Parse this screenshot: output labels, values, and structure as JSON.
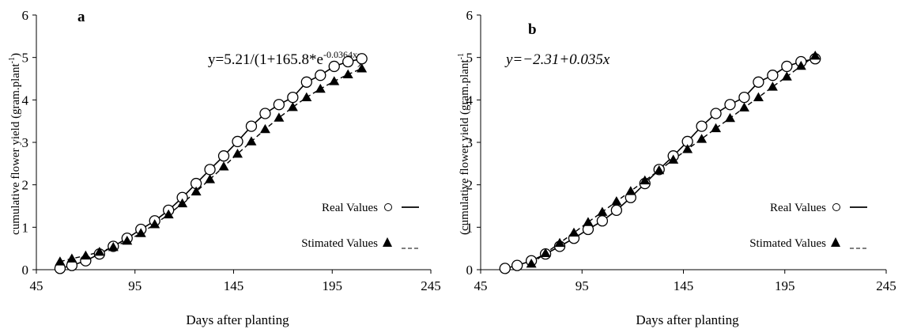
{
  "chart_data": [
    {
      "type": "scatter",
      "panel_label": "a",
      "equation": "y=5.21/(1+165.8*e",
      "equation_exponent": "-0.0364x",
      "equation_close": ")",
      "xlabel": "Days after planting",
      "ylabel": "cumulative flower yield (gram.plant",
      "ylabel_superscript": "-1",
      "ylabel_close": ")",
      "xlim": [
        45,
        245
      ],
      "ylim": [
        0,
        6
      ],
      "xticks": [
        "45",
        "95",
        "145",
        "195",
        "245"
      ],
      "yticks": [
        "0",
        "1",
        "2",
        "3",
        "4",
        "5",
        "6"
      ],
      "grid": false,
      "legend": [
        {
          "label": "Real Values",
          "marker": "open-circle",
          "line": "solid"
        },
        {
          "label": "Stimated Values",
          "marker": "filled-triangle",
          "line": "dashed"
        }
      ],
      "series": [
        {
          "name": "Real Values",
          "x": [
            57,
            63,
            70,
            77,
            84,
            91,
            98,
            105,
            112,
            119,
            126,
            133,
            140,
            147,
            154,
            161,
            168,
            175,
            182,
            189,
            196,
            203,
            210
          ],
          "y": [
            0.03,
            0.1,
            0.21,
            0.37,
            0.55,
            0.74,
            0.95,
            1.15,
            1.4,
            1.7,
            2.03,
            2.36,
            2.68,
            3.02,
            3.38,
            3.68,
            3.89,
            4.06,
            4.42,
            4.58,
            4.79,
            4.9,
            4.97
          ]
        },
        {
          "name": "Stimated Values",
          "x": [
            57,
            63,
            70,
            77,
            84,
            91,
            98,
            105,
            112,
            119,
            126,
            133,
            140,
            147,
            154,
            161,
            168,
            175,
            182,
            189,
            196,
            203,
            210
          ],
          "y": [
            0.19,
            0.26,
            0.33,
            0.42,
            0.53,
            0.68,
            0.86,
            1.07,
            1.3,
            1.56,
            1.84,
            2.13,
            2.43,
            2.73,
            3.02,
            3.31,
            3.58,
            3.83,
            4.06,
            4.26,
            4.44,
            4.6,
            4.74
          ]
        }
      ]
    },
    {
      "type": "scatter",
      "panel_label": "b",
      "equation": "y=−2.31+0.035x",
      "xlabel": "Days after planting",
      "ylabel": "(cumulative flower yield (gram.plant",
      "ylabel_superscript": "-1",
      "xlim": [
        45,
        245
      ],
      "ylim": [
        0,
        6
      ],
      "xticks": [
        "45",
        "95",
        "145",
        "195",
        "245"
      ],
      "yticks": [
        "0",
        "1",
        "2",
        "3",
        "4",
        "5",
        "6"
      ],
      "grid": false,
      "legend": [
        {
          "label": "Real Values",
          "marker": "open-circle",
          "line": "solid"
        },
        {
          "label": "Stimated Values",
          "marker": "filled-triangle",
          "line": "dashed"
        }
      ],
      "series": [
        {
          "name": "Real Values",
          "x": [
            57,
            63,
            70,
            77,
            84,
            91,
            98,
            105,
            112,
            119,
            126,
            133,
            140,
            147,
            154,
            161,
            168,
            175,
            182,
            189,
            196,
            203,
            210
          ],
          "y": [
            0.03,
            0.1,
            0.21,
            0.37,
            0.55,
            0.74,
            0.95,
            1.15,
            1.4,
            1.7,
            2.03,
            2.36,
            2.68,
            3.02,
            3.38,
            3.68,
            3.89,
            4.06,
            4.42,
            4.58,
            4.79,
            4.9,
            4.97
          ]
        },
        {
          "name": "Stimated Values",
          "x": [
            70,
            77,
            84,
            91,
            98,
            105,
            112,
            119,
            126,
            133,
            140,
            147,
            154,
            161,
            168,
            175,
            182,
            189,
            196,
            203,
            210
          ],
          "y": [
            0.14,
            0.39,
            0.63,
            0.87,
            1.12,
            1.36,
            1.61,
            1.85,
            2.1,
            2.34,
            2.59,
            2.84,
            3.08,
            3.33,
            3.57,
            3.82,
            4.06,
            4.31,
            4.55,
            4.8,
            5.04
          ]
        }
      ]
    }
  ]
}
